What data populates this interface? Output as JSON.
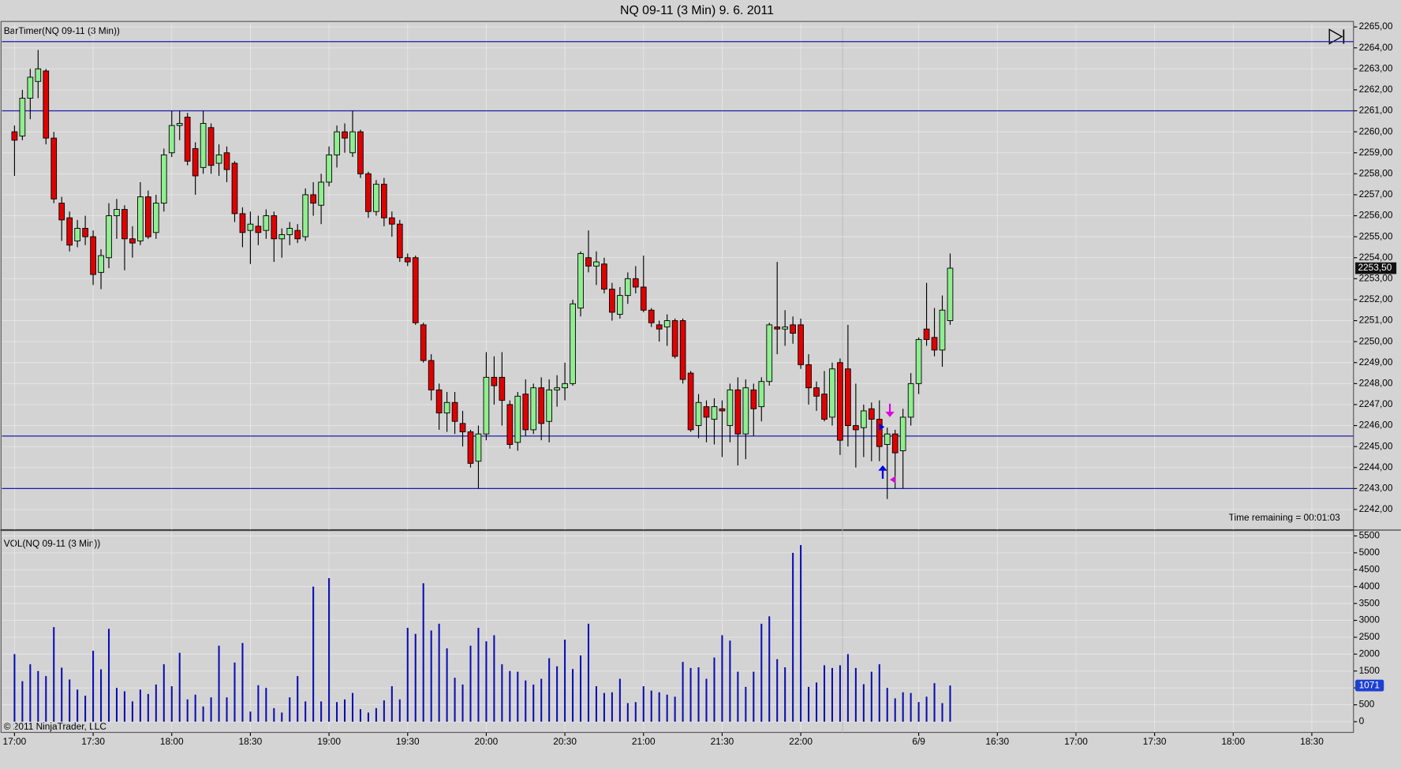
{
  "title": "NQ 09-11 (3 Min)  9. 6. 2011",
  "copyright": "© 2011 NinjaTrader, LLC",
  "chart_data": [
    {
      "type": "candlestick",
      "label": "BarTimer(NQ 09-11 (3 Min))",
      "annotation": "Time remaining = 00:01:03",
      "up_color": "#90ee90",
      "down_color": "#e00000",
      "level_color": "#1c1ca8",
      "levels": [
        2264.3,
        2261,
        2245.5,
        2243
      ],
      "last_price_label": "2253,50",
      "xlim": [
        -1.6,
        170.3
      ],
      "ylim": [
        2241.04,
        2265.26
      ],
      "yticks": [
        {
          "value": 2242,
          "label": "2242,00"
        },
        {
          "value": 2243,
          "label": "2243,00"
        },
        {
          "value": 2244,
          "label": "2244,00"
        },
        {
          "value": 2245,
          "label": "2245,00"
        },
        {
          "value": 2246,
          "label": "2246,00"
        },
        {
          "value": 2247,
          "label": "2247,00"
        },
        {
          "value": 2248,
          "label": "2248,00"
        },
        {
          "value": 2249,
          "label": "2249,00"
        },
        {
          "value": 2250,
          "label": "2250,00"
        },
        {
          "value": 2251,
          "label": "2251,00"
        },
        {
          "value": 2252,
          "label": "2252,00"
        },
        {
          "value": 2253,
          "label": "2253,00"
        },
        {
          "value": 2254,
          "label": "2254,00"
        },
        {
          "value": 2255,
          "label": "2255,00"
        },
        {
          "value": 2256,
          "label": "2256,00"
        },
        {
          "value": 2257,
          "label": "2257,00"
        },
        {
          "value": 2258,
          "label": "2258,00"
        },
        {
          "value": 2259,
          "label": "2259,00"
        },
        {
          "value": 2260,
          "label": "2260,00"
        },
        {
          "value": 2261,
          "label": "2261,00"
        },
        {
          "value": 2262,
          "label": "2262,00"
        },
        {
          "value": 2263,
          "label": "2263,00"
        },
        {
          "value": 2264,
          "label": "2264,00"
        },
        {
          "value": 2265,
          "label": "2265,00"
        }
      ],
      "open": [
        2260.0,
        2259.8,
        2261.6,
        2262.4,
        2262.9,
        2259.7,
        2256.6,
        2255.9,
        2254.8,
        2255.4,
        2255.0,
        2253.3,
        2254.0,
        2256.0,
        2256.3,
        2254.9,
        2254.8,
        2256.9,
        2255.2,
        2256.6,
        2259.0,
        2260.3,
        2260.7,
        2259.2,
        2258.3,
        2260.2,
        2258.5,
        2259.0,
        2258.5,
        2256.1,
        2255.3,
        2255.5,
        2255.3,
        2256.0,
        2254.9,
        2255.1,
        2255.3,
        2255.0,
        2257.0,
        2256.5,
        2257.6,
        2258.9,
        2260.0,
        2259.0,
        2260.0,
        2258.0,
        2256.2,
        2257.5,
        2255.9,
        2255.6,
        2254.0,
        2254.0,
        2250.8,
        2249.1,
        2247.7,
        2246.6,
        2247.1,
        2246.1,
        2245.7,
        2244.3,
        2245.6,
        2248.3,
        2248.3,
        2247.0,
        2245.2,
        2247.5,
        2245.8,
        2247.8,
        2246.2,
        2247.7,
        2247.8,
        2248.0,
        2251.6,
        2254.0,
        2253.6,
        2253.7,
        2252.5,
        2251.3,
        2252.2,
        2253.0,
        2252.6,
        2251.5,
        2250.8,
        2250.7,
        2251.0,
        2251.0,
        2248.5,
        2246.0,
        2246.9,
        2246.3,
        2246.8,
        2246.0,
        2247.7,
        2245.6,
        2247.7,
        2246.9,
        2248.1,
        2250.7,
        2250.6,
        2250.8,
        2250.8,
        2248.9,
        2247.8,
        2247.5,
        2246.4,
        2249.0,
        2248.7,
        2246.0,
        2245.9,
        2246.8,
        2246.3,
        2245.1,
        2245.6,
        2244.8,
        2246.4,
        2248.0,
        2250.6,
        2250.2,
        2249.6,
        2251.0
      ],
      "high": [
        2260.3,
        2262.0,
        2263.0,
        2263.9,
        2263.0,
        2260.0,
        2256.9,
        2256.2,
        2255.8,
        2256.0,
        2255.3,
        2254.4,
        2256.6,
        2256.8,
        2256.5,
        2255.5,
        2257.6,
        2257.2,
        2257.0,
        2259.2,
        2261.0,
        2261.0,
        2260.9,
        2259.5,
        2261.0,
        2260.4,
        2259.4,
        2259.3,
        2258.6,
        2256.4,
        2256.2,
        2256.0,
        2256.3,
        2256.2,
        2255.4,
        2255.7,
        2255.6,
        2257.3,
        2257.6,
        2258.0,
        2259.3,
        2260.3,
        2260.4,
        2261.0,
        2260.1,
        2258.1,
        2257.7,
        2257.8,
        2256.2,
        2255.8,
        2254.2,
        2254.1,
        2250.9,
        2249.4,
        2248.0,
        2247.6,
        2247.6,
        2246.7,
        2245.8,
        2246.0,
        2249.5,
        2249.3,
        2249.5,
        2247.2,
        2247.6,
        2248.2,
        2248.0,
        2248.3,
        2248.2,
        2248.4,
        2249.0,
        2252.0,
        2254.3,
        2255.3,
        2254.3,
        2254.0,
        2252.8,
        2252.6,
        2253.3,
        2253.6,
        2254.1,
        2251.6,
        2251.0,
        2251.3,
        2251.1,
        2251.1,
        2248.6,
        2247.5,
        2247.2,
        2247.3,
        2247.2,
        2248.0,
        2248.3,
        2248.2,
        2248.0,
        2248.3,
        2250.9,
        2253.8,
        2251.5,
        2251.2,
        2251.1,
        2249.4,
        2248.1,
        2248.6,
        2249.0,
        2249.2,
        2250.8,
        2248.0,
        2247.0,
        2247.1,
        2247.2,
        2245.9,
        2245.8,
        2246.8,
        2248.5,
        2250.2,
        2252.8,
        2251.6,
        2252.2,
        2254.2
      ],
      "low": [
        2257.9,
        2259.6,
        2260.6,
        2261.6,
        2259.4,
        2256.6,
        2254.8,
        2254.3,
        2254.5,
        2254.6,
        2252.7,
        2252.5,
        2253.5,
        2254.9,
        2253.4,
        2254.0,
        2254.6,
        2254.9,
        2254.9,
        2256.2,
        2258.8,
        2259.6,
        2258.4,
        2257.0,
        2258.0,
        2258.0,
        2257.9,
        2257.6,
        2255.7,
        2254.5,
        2253.7,
        2254.6,
        2254.9,
        2253.8,
        2254.0,
        2254.6,
        2254.7,
        2254.8,
        2256.0,
        2255.6,
        2257.4,
        2258.3,
        2259.0,
        2258.8,
        2257.8,
        2255.9,
        2256.0,
        2255.5,
        2255.0,
        2253.8,
        2253.6,
        2250.8,
        2249.0,
        2247.2,
        2245.8,
        2245.7,
        2245.6,
        2245.0,
        2244.0,
        2243.0,
        2245.3,
        2247.0,
        2246.0,
        2244.9,
        2244.8,
        2245.5,
        2245.6,
        2245.3,
        2245.2,
        2246.9,
        2247.2,
        2247.9,
        2251.2,
        2253.3,
        2252.7,
        2252.3,
        2251.0,
        2251.1,
        2251.8,
        2252.3,
        2251.4,
        2250.7,
        2250.0,
        2249.8,
        2249.2,
        2248.0,
        2245.7,
        2245.4,
        2245.2,
        2245.1,
        2244.5,
        2245.2,
        2244.1,
        2244.4,
        2245.5,
        2246.2,
        2247.9,
        2249.4,
        2249.8,
        2249.9,
        2248.7,
        2247.0,
        2246.7,
        2246.2,
        2246.0,
        2244.6,
        2245.0,
        2244.0,
        2244.5,
        2244.3,
        2244.3,
        2242.5,
        2243.0,
        2243.0,
        2246.0,
        2247.5,
        2249.8,
        2249.3,
        2248.8,
        2250.8
      ],
      "close": [
        2259.6,
        2261.6,
        2262.6,
        2263.0,
        2259.7,
        2256.8,
        2255.8,
        2254.6,
        2255.4,
        2255.0,
        2253.2,
        2254.1,
        2256.0,
        2256.3,
        2254.9,
        2254.7,
        2256.9,
        2255.0,
        2256.6,
        2258.9,
        2260.3,
        2260.4,
        2258.6,
        2257.9,
        2260.4,
        2258.4,
        2258.9,
        2258.2,
        2256.1,
        2255.2,
        2255.6,
        2255.2,
        2256.0,
        2254.9,
        2255.1,
        2255.4,
        2254.9,
        2257.0,
        2256.6,
        2257.6,
        2258.9,
        2260.0,
        2259.7,
        2260.0,
        2258.0,
        2256.2,
        2257.5,
        2255.9,
        2255.6,
        2254.0,
        2253.8,
        2250.9,
        2249.1,
        2247.7,
        2246.6,
        2247.1,
        2246.2,
        2245.7,
        2244.2,
        2245.6,
        2248.3,
        2247.9,
        2247.2,
        2245.1,
        2247.4,
        2245.8,
        2247.8,
        2246.1,
        2247.7,
        2247.8,
        2248.0,
        2251.8,
        2254.2,
        2253.6,
        2253.8,
        2252.5,
        2251.4,
        2252.2,
        2253.0,
        2252.6,
        2251.5,
        2250.9,
        2250.6,
        2251.0,
        2249.3,
        2248.2,
        2245.8,
        2247.1,
        2246.4,
        2246.9,
        2246.7,
        2247.7,
        2245.6,
        2247.8,
        2246.8,
        2248.1,
        2250.8,
        2250.6,
        2250.7,
        2250.4,
        2248.9,
        2247.8,
        2247.4,
        2246.3,
        2248.7,
        2245.3,
        2246.0,
        2245.8,
        2246.7,
        2246.3,
        2245.0,
        2245.6,
        2244.7,
        2246.4,
        2248.0,
        2250.1,
        2250.1,
        2249.6,
        2251.5,
        2253.5
      ]
    },
    {
      "type": "bar",
      "label": "VOL(NQ 09-11 (3 Min))",
      "color": "#0a0ab4",
      "xlim": [
        -1.6,
        170.3
      ],
      "ylim": [
        -317,
        5660
      ],
      "yticks": [
        0,
        500,
        1000,
        1500,
        2000,
        2500,
        3000,
        3500,
        4000,
        4500,
        5000,
        5500
      ],
      "xticks": [
        {
          "value": 0,
          "label": "17:00"
        },
        {
          "value": 10,
          "label": "17:30"
        },
        {
          "value": 20,
          "label": "18:00"
        },
        {
          "value": 30,
          "label": "18:30"
        },
        {
          "value": 40,
          "label": "19:00"
        },
        {
          "value": 50,
          "label": "19:30"
        },
        {
          "value": 60,
          "label": "20:00"
        },
        {
          "value": 70,
          "label": "20:30"
        },
        {
          "value": 80,
          "label": "21:00"
        },
        {
          "value": 90,
          "label": "21:30"
        },
        {
          "value": 100,
          "label": "22:00"
        },
        {
          "value": 115,
          "label": "6/9"
        },
        {
          "value": 125,
          "label": "16:30"
        },
        {
          "value": 135,
          "label": "17:00"
        },
        {
          "value": 145,
          "label": "17:30"
        },
        {
          "value": 155,
          "label": "18:00"
        },
        {
          "value": 165,
          "label": "18:30"
        }
      ],
      "values": [
        2000,
        1200,
        1700,
        1500,
        1350,
        2800,
        1600,
        1250,
        950,
        770,
        2100,
        1550,
        2750,
        1000,
        900,
        600,
        950,
        820,
        1100,
        1700,
        1050,
        2040,
        660,
        800,
        450,
        720,
        2250,
        720,
        1750,
        2330,
        300,
        1080,
        1000,
        400,
        270,
        720,
        1350,
        600,
        4000,
        600,
        4250,
        580,
        660,
        850,
        370,
        270,
        400,
        630,
        1050,
        660,
        2780,
        2600,
        4100,
        2700,
        2900,
        2170,
        1300,
        1100,
        2250,
        2780,
        2380,
        2560,
        1700,
        1500,
        1480,
        1220,
        1100,
        1270,
        1880,
        1640,
        2430,
        1560,
        1960,
        2900,
        1050,
        850,
        870,
        1270,
        550,
        580,
        1050,
        920,
        870,
        800,
        740,
        1770,
        1590,
        1610,
        1270,
        1900,
        2560,
        2400,
        1480,
        1030,
        1480,
        2900,
        3120,
        1850,
        1610,
        5000,
        5230,
        1030,
        1160,
        1670,
        1590,
        1670,
        2000,
        1590,
        1110,
        1480,
        1700,
        1000,
        690,
        870,
        850,
        580,
        740,
        1140,
        550,
        1071
      ]
    }
  ]
}
